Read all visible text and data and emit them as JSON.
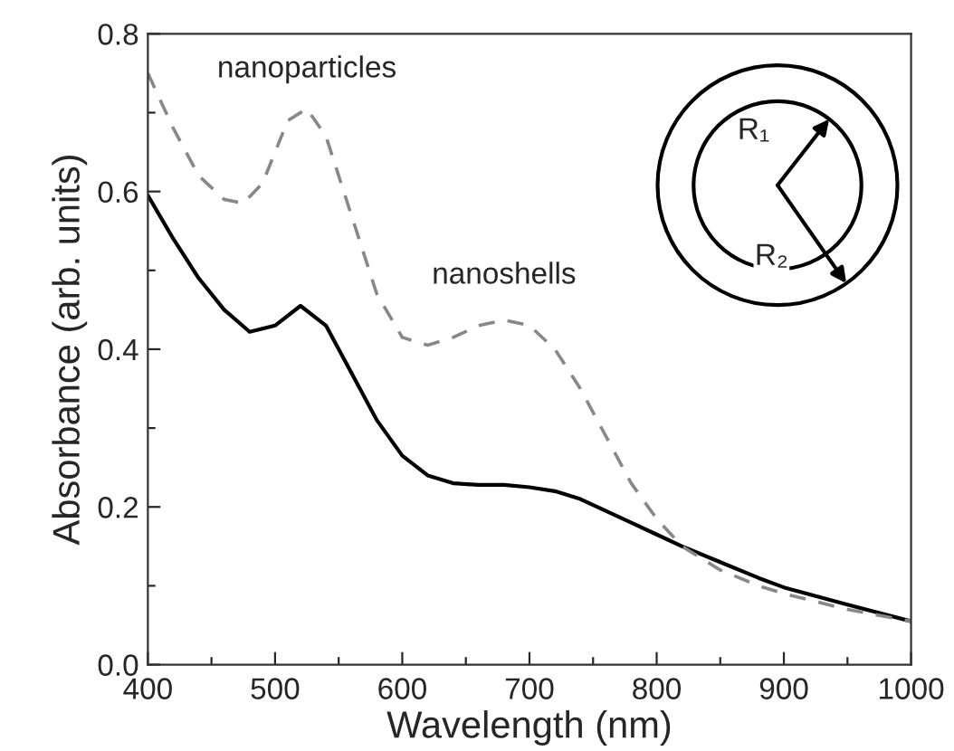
{
  "chart_data": {
    "type": "line",
    "xlabel": "Wavelength (nm)",
    "ylabel": "Absorbance (arb. units)",
    "xlim": [
      400,
      1000
    ],
    "ylim": [
      0.0,
      0.8
    ],
    "xticks": [
      400,
      {
        "value": 450,
        "label": null
      },
      500,
      {
        "value": 550,
        "label": null
      },
      600,
      {
        "value": 650,
        "label": null
      },
      700,
      {
        "value": 750,
        "label": null
      },
      800,
      {
        "value": 850,
        "label": null
      },
      900,
      {
        "value": 950,
        "label": null
      },
      1000
    ],
    "yticks": [
      {
        "value": 0.0,
        "label": "0.0"
      },
      {
        "value": 0.1,
        "label": null
      },
      0.2,
      {
        "value": 0.3,
        "label": null
      },
      0.4,
      {
        "value": 0.5,
        "label": null
      },
      0.6,
      {
        "value": 0.7,
        "label": null
      },
      0.8
    ],
    "grid": false,
    "legend": false,
    "marker": "none",
    "series": [
      {
        "color": "#000000",
        "line_style": "solid",
        "x": [
          400,
          420,
          440,
          460,
          480,
          500,
          520,
          540,
          560,
          580,
          600,
          620,
          640,
          660,
          680,
          700,
          720,
          740,
          760,
          780,
          800,
          820,
          850,
          880,
          900,
          950,
          1000
        ],
        "values": [
          0.595,
          0.54,
          0.49,
          0.45,
          0.422,
          0.43,
          0.455,
          0.43,
          0.37,
          0.31,
          0.265,
          0.24,
          0.23,
          0.228,
          0.228,
          0.225,
          0.22,
          0.21,
          0.195,
          0.18,
          0.165,
          0.15,
          0.13,
          0.11,
          0.098,
          0.076,
          0.055
        ]
      },
      {
        "color": "#888888",
        "line_style": "dashed",
        "x": [
          400,
          420,
          440,
          460,
          475,
          490,
          510,
          525,
          540,
          560,
          580,
          600,
          620,
          640,
          660,
          680,
          700,
          720,
          740,
          760,
          780,
          800,
          820,
          850,
          880,
          900,
          950,
          1000
        ],
        "values": [
          0.75,
          0.68,
          0.62,
          0.59,
          0.585,
          0.61,
          0.69,
          0.705,
          0.67,
          0.57,
          0.47,
          0.415,
          0.405,
          0.415,
          0.43,
          0.437,
          0.43,
          0.4,
          0.35,
          0.29,
          0.23,
          0.185,
          0.15,
          0.12,
          0.1,
          0.09,
          0.07,
          0.055
        ]
      }
    ],
    "annotations": [
      {
        "text": "nanoparticles",
        "x": 525,
        "y": 0.705
      },
      {
        "text": "nanoshells",
        "x": 680,
        "y": 0.437
      },
      "R₁",
      "R₂"
    ]
  }
}
